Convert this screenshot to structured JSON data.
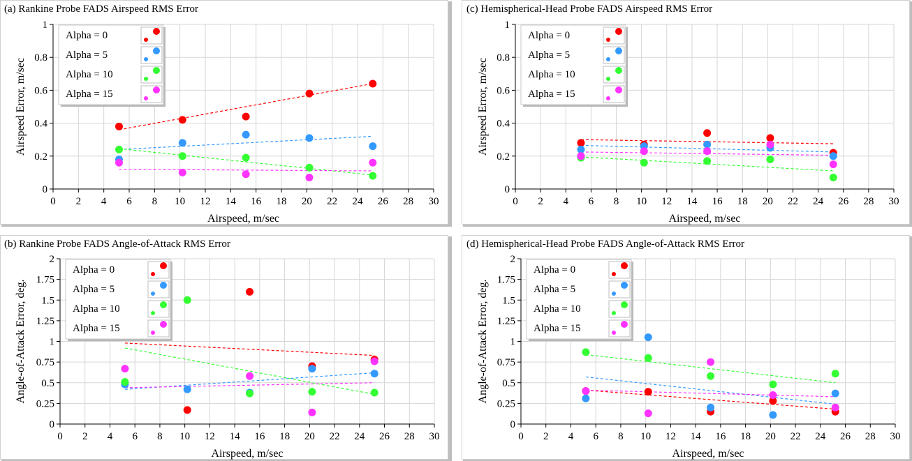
{
  "chart_data": [
    {
      "id": "a",
      "type": "scatter",
      "title": "(a) Rankine Probe FADS Airspeed RMS Error",
      "xlabel": "Airspeed, m/sec",
      "ylabel": "Airspeed Error, m/sec",
      "xlim": [
        0,
        30
      ],
      "ylim": [
        0,
        1
      ],
      "xticks": [
        0,
        2,
        4,
        6,
        8,
        10,
        12,
        14,
        16,
        18,
        20,
        22,
        24,
        26,
        28,
        30
      ],
      "yticks": [
        0,
        0.2,
        0.4,
        0.6,
        0.8,
        1
      ],
      "yticklabels": [
        "0",
        "0.2",
        "0.4",
        "0.6",
        "0.8",
        "1"
      ],
      "grid": true,
      "legend_position": "top-left",
      "series": [
        {
          "name": "Alpha = 0",
          "color": "#ff0000",
          "x": [
            5.2,
            10.2,
            15.2,
            20.2,
            25.2
          ],
          "y": [
            0.38,
            0.42,
            0.44,
            0.58,
            0.64
          ],
          "trend": [
            0.36,
            0.64
          ]
        },
        {
          "name": "Alpha = 5",
          "color": "#3399ff",
          "x": [
            5.2,
            10.2,
            15.2,
            20.2,
            25.2
          ],
          "y": [
            0.18,
            0.28,
            0.33,
            0.31,
            0.26
          ],
          "trend": [
            0.24,
            0.32
          ]
        },
        {
          "name": "Alpha = 10",
          "color": "#33ff33",
          "x": [
            5.2,
            10.2,
            15.2,
            20.2,
            25.2
          ],
          "y": [
            0.24,
            0.2,
            0.19,
            0.13,
            0.08
          ],
          "trend": [
            0.245,
            0.085
          ]
        },
        {
          "name": "Alpha = 15",
          "color": "#ff33ff",
          "x": [
            5.2,
            10.2,
            15.2,
            20.2,
            25.2
          ],
          "y": [
            0.16,
            0.1,
            0.09,
            0.07,
            0.16
          ],
          "trend": [
            0.12,
            0.11
          ]
        }
      ]
    },
    {
      "id": "c",
      "type": "scatter",
      "title": "(c) Hemispherical-Head Probe FADS Airspeed RMS Error",
      "xlabel": "Airspeed, m/sec",
      "ylabel": "Airspeed Error, m/sec",
      "xlim": [
        0,
        30
      ],
      "ylim": [
        0,
        1
      ],
      "xticks": [
        0,
        2,
        4,
        6,
        8,
        10,
        12,
        14,
        16,
        18,
        20,
        22,
        24,
        26,
        28,
        30
      ],
      "yticks": [
        0,
        0.2,
        0.4,
        0.6,
        0.8,
        1
      ],
      "yticklabels": [
        "0",
        "0.2",
        "0.4",
        "0.6",
        "0.8",
        "1"
      ],
      "grid": true,
      "legend_position": "top-left",
      "series": [
        {
          "name": "Alpha = 0",
          "color": "#ff0000",
          "x": [
            5.2,
            10.2,
            15.2,
            20.2,
            25.2
          ],
          "y": [
            0.28,
            0.27,
            0.34,
            0.31,
            0.22
          ],
          "trend": [
            0.3,
            0.275
          ]
        },
        {
          "name": "Alpha = 5",
          "color": "#3399ff",
          "x": [
            5.2,
            10.2,
            15.2,
            20.2,
            25.2
          ],
          "y": [
            0.24,
            0.26,
            0.27,
            0.25,
            0.2
          ],
          "trend": [
            0.265,
            0.225
          ]
        },
        {
          "name": "Alpha = 10",
          "color": "#33ff33",
          "x": [
            5.2,
            10.2,
            15.2,
            20.2,
            25.2
          ],
          "y": [
            0.19,
            0.16,
            0.17,
            0.18,
            0.07
          ],
          "trend": [
            0.195,
            0.11
          ]
        },
        {
          "name": "Alpha = 15",
          "color": "#ff33ff",
          "x": [
            5.2,
            10.2,
            15.2,
            20.2,
            25.2
          ],
          "y": [
            0.2,
            0.23,
            0.23,
            0.27,
            0.15
          ],
          "trend": [
            0.225,
            0.205
          ]
        }
      ]
    },
    {
      "id": "b",
      "type": "scatter",
      "title": "(b) Rankine Probe FADS Angle-of-Attack RMS Error",
      "xlabel": "Airspeed, m/sec",
      "ylabel": "Angle-of-Attack Error, deg.",
      "xlim": [
        0,
        30
      ],
      "ylim": [
        0,
        2
      ],
      "xticks": [
        0,
        2,
        4,
        6,
        8,
        10,
        12,
        14,
        16,
        18,
        20,
        22,
        24,
        26,
        28,
        30
      ],
      "yticks": [
        0,
        0.25,
        0.5,
        0.75,
        1,
        1.25,
        1.5,
        1.75,
        2
      ],
      "yticklabels": [
        "0",
        "0.25",
        "0.5",
        "0.75",
        "1",
        "1.25",
        "1.5",
        "1.75",
        "2"
      ],
      "grid": true,
      "legend_position": "top-left",
      "series": [
        {
          "name": "Alpha = 0",
          "color": "#ff0000",
          "x": [
            10.2,
            15.2,
            20.2,
            25.2
          ],
          "y": [
            0.17,
            1.6,
            0.7,
            0.78
          ],
          "trend": [
            0.98,
            0.83
          ]
        },
        {
          "name": "Alpha = 5",
          "color": "#3399ff",
          "x": [
            5.2,
            10.2,
            15.2,
            20.2,
            25.2
          ],
          "y": [
            0.48,
            0.42,
            0.38,
            0.67,
            0.61
          ],
          "trend": [
            0.42,
            0.62
          ]
        },
        {
          "name": "Alpha = 10",
          "color": "#33ff33",
          "x": [
            5.2,
            10.2,
            15.2,
            20.2,
            25.2
          ],
          "y": [
            0.51,
            1.5,
            0.37,
            0.39,
            0.38
          ],
          "trend": [
            0.92,
            0.36
          ]
        },
        {
          "name": "Alpha = 15",
          "color": "#ff33ff",
          "x": [
            5.2,
            15.2,
            20.2,
            25.2
          ],
          "y": [
            0.67,
            0.58,
            0.14,
            0.76
          ],
          "trend": [
            0.44,
            0.5
          ]
        }
      ]
    },
    {
      "id": "d",
      "type": "scatter",
      "title": "(d) Hemispherical-Head Probe FADS Angle-of-Attack RMS Error",
      "xlabel": "Airspeed, m/sec",
      "ylabel": "Angle-of-Attack Error, deg.",
      "xlim": [
        0,
        30
      ],
      "ylim": [
        0,
        2
      ],
      "xticks": [
        0,
        2,
        4,
        6,
        8,
        10,
        12,
        14,
        16,
        18,
        20,
        22,
        24,
        26,
        28,
        30
      ],
      "yticks": [
        0,
        0.25,
        0.5,
        0.75,
        1,
        1.25,
        1.5,
        1.75,
        2
      ],
      "yticklabels": [
        "0",
        "0.25",
        "0.5",
        "0.75",
        "1",
        "1.25",
        "1.5",
        "1.75",
        "2"
      ],
      "grid": true,
      "legend_position": "top-left",
      "series": [
        {
          "name": "Alpha = 0",
          "color": "#ff0000",
          "x": [
            5.2,
            10.2,
            15.2,
            20.2,
            25.2
          ],
          "y": [
            0.4,
            0.39,
            0.15,
            0.28,
            0.15
          ],
          "trend": [
            0.41,
            0.18
          ]
        },
        {
          "name": "Alpha = 5",
          "color": "#3399ff",
          "x": [
            5.2,
            10.2,
            15.2,
            20.2,
            25.2
          ],
          "y": [
            0.31,
            1.05,
            0.2,
            0.11,
            0.37
          ],
          "trend": [
            0.57,
            0.24
          ]
        },
        {
          "name": "Alpha = 10",
          "color": "#33ff33",
          "x": [
            5.2,
            10.2,
            15.2,
            20.2,
            25.2
          ],
          "y": [
            0.87,
            0.8,
            0.58,
            0.48,
            0.61
          ],
          "trend": [
            0.84,
            0.5
          ]
        },
        {
          "name": "Alpha = 15",
          "color": "#ff33ff",
          "x": [
            5.2,
            10.2,
            15.2,
            20.2,
            25.2
          ],
          "y": [
            0.4,
            0.13,
            0.75,
            0.35,
            0.2
          ],
          "trend": [
            0.41,
            0.33
          ]
        }
      ]
    }
  ]
}
